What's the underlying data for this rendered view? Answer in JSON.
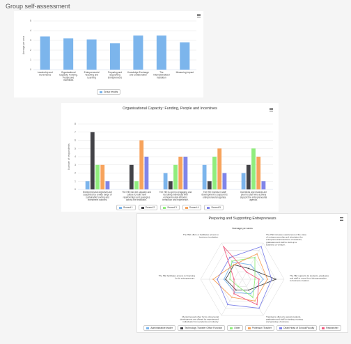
{
  "page": {
    "title": "Group self-assessment"
  },
  "chart_data": [
    {
      "type": "bar",
      "title": "",
      "ylabel": "Average per area",
      "ylim": [
        0,
        5
      ],
      "yticks": [
        "0",
        "1",
        "2",
        "3",
        "4",
        "5"
      ],
      "categories": [
        "Leadership and Governance",
        "Organisational Capacity: Funding, People and Incentives",
        "Entrepreneurial Teaching and Learning",
        "Preparing and Supporting Entrepreneurs",
        "Knowledge Exchange and Collaboration",
        "The Internationalised Institution",
        "Measuring Impact"
      ],
      "series": [
        {
          "name": "Group results",
          "color": "#7cb5ec",
          "values": [
            3.4,
            3.2,
            3.1,
            2.7,
            3.5,
            3.5,
            2.8
          ]
        }
      ],
      "legend": "bottom-center"
    },
    {
      "type": "bar",
      "title": "Organisational Capacity: Funding, People and Incentives",
      "ylabel": "Number of respondents",
      "ylim": [
        0,
        8
      ],
      "yticks": [
        "0",
        "1",
        "2",
        "3",
        "4",
        "5",
        "6",
        "7",
        "8"
      ],
      "categories": [
        "Entrepreneurial objectives are supported by a wide range of sustainable funding and investment sources.",
        "The HEI has the capacity and culture to build new relationships and synergies across the institution.",
        "The HEI is open to engaging and recruiting individuals with entrepreneurial attitudes, behaviour and experience.",
        "The HEI invests in staff development to support its entrepreneurial agenda.",
        "Incentives and rewards are given to staff who actively support the entrepreneurial agenda."
      ],
      "series": [
        {
          "name": "Scored 1",
          "color": "#7cb5ec",
          "values": [
            1,
            0,
            2,
            3,
            2
          ]
        },
        {
          "name": "Scored 2",
          "color": "#434348",
          "values": [
            7,
            3,
            1,
            1,
            3
          ]
        },
        {
          "name": "Scored 3",
          "color": "#90ed7d",
          "values": [
            3,
            1,
            3,
            4,
            5
          ]
        },
        {
          "name": "Scored 4",
          "color": "#f7a35c",
          "values": [
            3,
            6,
            4,
            5,
            4
          ]
        },
        {
          "name": "Scored 5",
          "color": "#8085e9",
          "values": [
            1,
            4,
            4,
            2,
            1
          ]
        }
      ],
      "legend": "bottom-center"
    },
    {
      "type": "radar",
      "title": "Preparing and Supporting Entrepreneurs",
      "subtitle": "Average per area",
      "rmax": 5,
      "axes": [
        "The HEI increases awareness of the value of entrepreneurship and stimulates the entrepreneurial intentions of students, graduates and staff to start-up a business or venture.",
        "The HEI supports its students, graduates and staff to move from idea generation to business creation.",
        "Training is offered to assist students, graduates and staff in starting, running and growing a business.",
        "Mentoring and other forms of personal development are offered by experienced individuals from academia or industry.",
        "The HEI facilitates access to financing for its entrepreneurs.",
        "The HEI offers or facilitates access to business incubation."
      ],
      "series": [
        {
          "name": "Administrative leader",
          "color": "#7cb5ec",
          "values": [
            2.0,
            2.5,
            2.0,
            1.8,
            2.2,
            2.4
          ]
        },
        {
          "name": "Technology Transfer Office Function",
          "color": "#434348",
          "values": [
            1.5,
            4.0,
            1.5,
            1.5,
            2.0,
            2.0
          ]
        },
        {
          "name": "Other",
          "color": "#90ed7d",
          "values": [
            3.0,
            1.5,
            2.5,
            1.0,
            1.5,
            2.5
          ]
        },
        {
          "name": "Professor/ Teacher",
          "color": "#f7a35c",
          "values": [
            3.5,
            3.0,
            3.0,
            2.5,
            3.5,
            2.0
          ]
        },
        {
          "name": "Dean/Head of School/Faculty",
          "color": "#8085e9",
          "values": [
            4.5,
            3.5,
            4.0,
            3.5,
            3.0,
            3.0
          ]
        },
        {
          "name": "Researcher",
          "color": "#f15c80",
          "values": [
            1.0,
            2.0,
            3.5,
            2.0,
            1.0,
            4.5
          ]
        }
      ],
      "legend": "bottom-center"
    }
  ]
}
